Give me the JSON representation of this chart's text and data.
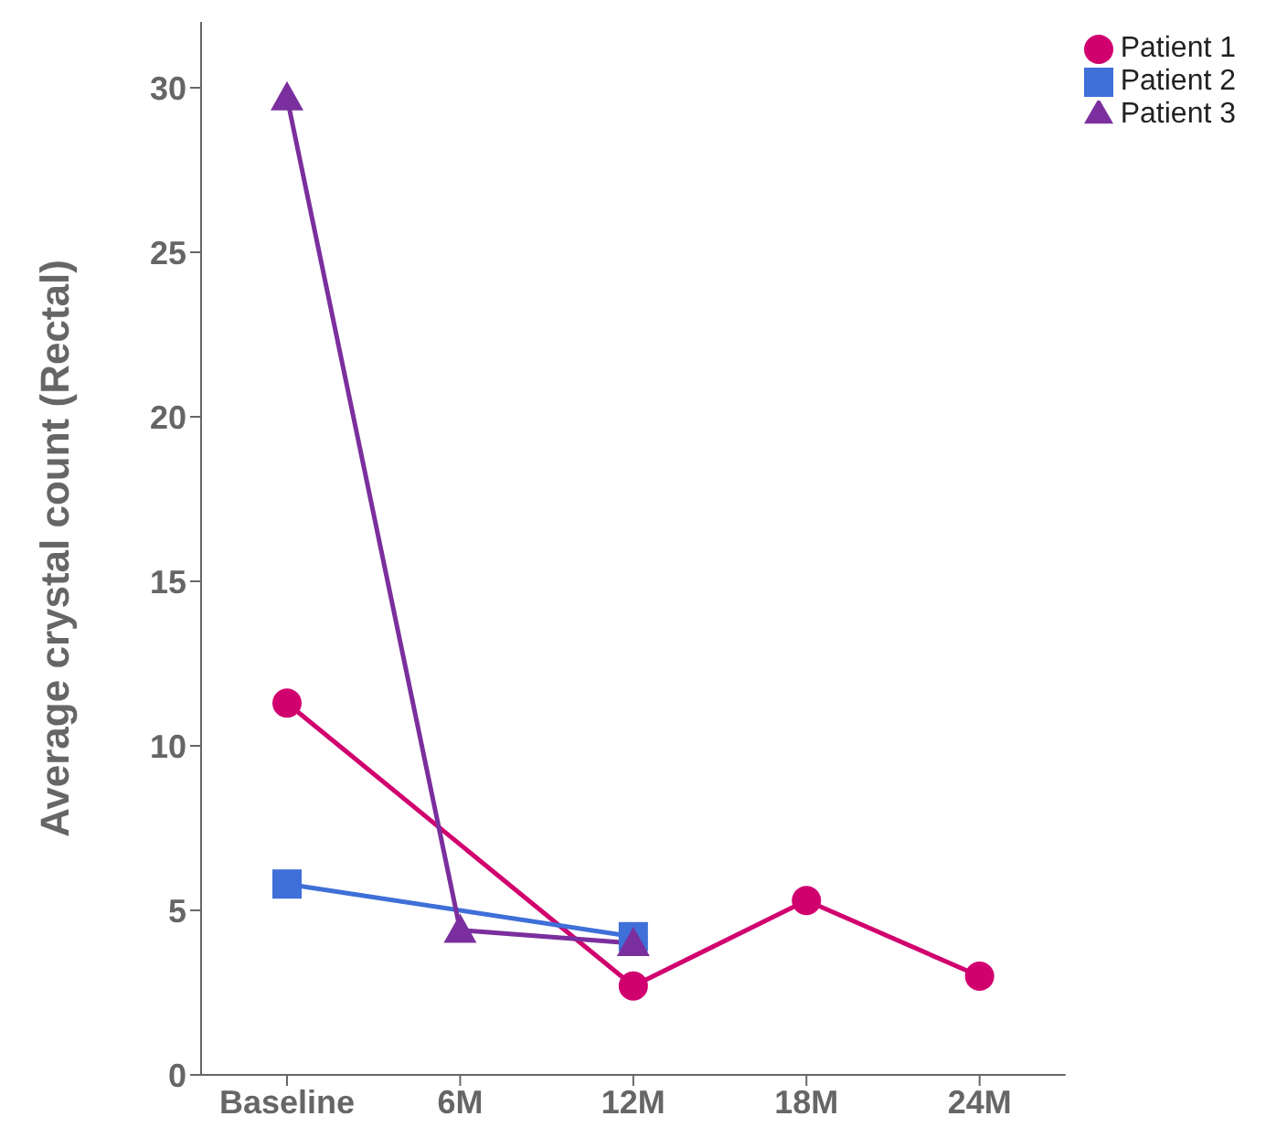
{
  "chart_data": {
    "type": "line",
    "ylabel": "Average crystal count (Rectal)",
    "categories": [
      "Baseline",
      "6M",
      "12M",
      "18M",
      "24M"
    ],
    "ylim": [
      0,
      32
    ],
    "yticks": [
      0,
      5,
      10,
      15,
      20,
      25,
      30
    ],
    "grid": false,
    "legend": "top right",
    "series": [
      {
        "name": "Patient 1",
        "color": "#d1006f",
        "marker": "circle",
        "values": [
          11.3,
          null,
          2.7,
          5.3,
          3.0
        ]
      },
      {
        "name": "Patient 2",
        "color": "#3f6fd8",
        "marker": "square",
        "values": [
          5.8,
          null,
          4.2,
          null,
          null
        ]
      },
      {
        "name": "Patient 3",
        "color": "#7b2f9e",
        "marker": "triangle",
        "values": [
          29.7,
          4.4,
          4.0,
          null,
          null
        ]
      }
    ]
  }
}
